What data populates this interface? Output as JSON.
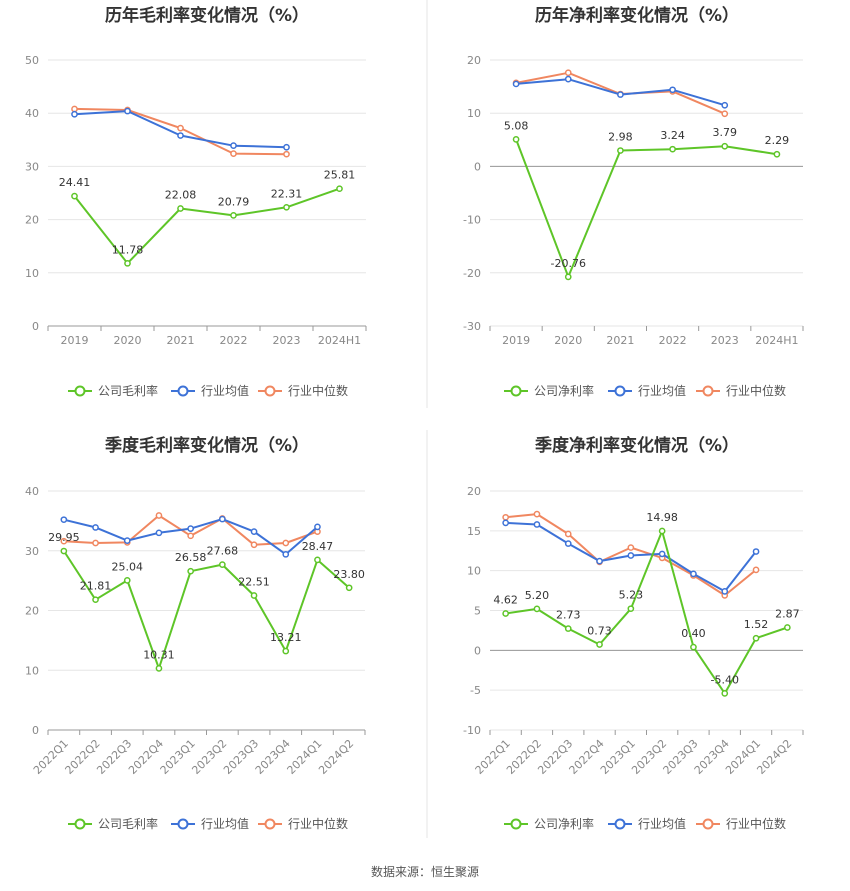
{
  "source_text": "数据来源：恒生聚源",
  "chart_data": [
    {
      "type": "line",
      "title": "历年毛利率变化情况（%）",
      "categories": [
        "2019",
        "2020",
        "2021",
        "2022",
        "2023",
        "2024H1"
      ],
      "ylim": [
        0,
        50
      ],
      "yticks": [
        0,
        10,
        20,
        30,
        40,
        50
      ],
      "grid": true,
      "legend_position": "bottom",
      "series": [
        {
          "name": "公司毛利率",
          "color": "#5ec528",
          "labels": true,
          "values": [
            24.41,
            11.78,
            22.08,
            20.79,
            22.31,
            25.81
          ]
        },
        {
          "name": "行业均值",
          "color": "#3d72d7",
          "labels": false,
          "values": [
            39.8,
            40.4,
            35.8,
            33.9,
            33.6,
            null
          ]
        },
        {
          "name": "行业中位数",
          "color": "#f08760",
          "labels": false,
          "values": [
            40.8,
            40.6,
            37.2,
            32.4,
            32.3,
            null
          ]
        }
      ]
    },
    {
      "type": "line",
      "title": "历年净利率变化情况（%）",
      "categories": [
        "2019",
        "2020",
        "2021",
        "2022",
        "2023",
        "2024H1"
      ],
      "ylim": [
        -30,
        20
      ],
      "yticks": [
        -30,
        -20,
        -10,
        0,
        10,
        20
      ],
      "grid": true,
      "legend_position": "bottom",
      "series": [
        {
          "name": "公司净利率",
          "color": "#5ec528",
          "labels": true,
          "values": [
            5.08,
            -20.76,
            2.98,
            3.24,
            3.79,
            2.29
          ]
        },
        {
          "name": "行业均值",
          "color": "#3d72d7",
          "labels": false,
          "values": [
            15.5,
            16.4,
            13.5,
            14.4,
            11.5,
            null
          ]
        },
        {
          "name": "行业中位数",
          "color": "#f08760",
          "labels": false,
          "values": [
            15.7,
            17.6,
            13.6,
            14.1,
            9.9,
            null
          ]
        }
      ]
    },
    {
      "type": "line",
      "title": "季度毛利率变化情况（%）",
      "categories": [
        "2022Q1",
        "2022Q2",
        "2022Q3",
        "2022Q4",
        "2023Q1",
        "2023Q2",
        "2023Q3",
        "2023Q4",
        "2024Q1",
        "2024Q2"
      ],
      "ylim": [
        0,
        40
      ],
      "yticks": [
        0,
        10,
        20,
        30,
        40
      ],
      "grid": true,
      "legend_position": "bottom",
      "series": [
        {
          "name": "公司毛利率",
          "color": "#5ec528",
          "labels": true,
          "values": [
            29.95,
            21.81,
            25.04,
            10.31,
            26.58,
            27.68,
            22.51,
            13.21,
            28.47,
            23.8
          ]
        },
        {
          "name": "行业均值",
          "color": "#3d72d7",
          "labels": false,
          "values": [
            35.2,
            33.9,
            31.7,
            33.0,
            33.7,
            35.3,
            33.2,
            29.4,
            34.0,
            null
          ]
        },
        {
          "name": "行业中位数",
          "color": "#f08760",
          "labels": false,
          "values": [
            31.6,
            31.3,
            31.4,
            35.9,
            32.5,
            35.4,
            31.0,
            31.3,
            33.2,
            null
          ]
        }
      ]
    },
    {
      "type": "line",
      "title": "季度净利率变化情况（%）",
      "categories": [
        "2022Q1",
        "2022Q2",
        "2022Q3",
        "2022Q4",
        "2023Q1",
        "2023Q2",
        "2023Q3",
        "2023Q4",
        "2024Q1",
        "2024Q2"
      ],
      "ylim": [
        -10,
        20
      ],
      "yticks": [
        -10,
        -5,
        0,
        5,
        10,
        15,
        20
      ],
      "grid": true,
      "legend_position": "bottom",
      "series": [
        {
          "name": "公司净利率",
          "color": "#5ec528",
          "labels": true,
          "values": [
            4.62,
            5.2,
            2.73,
            0.73,
            5.23,
            14.98,
            0.4,
            -5.4,
            1.52,
            2.87
          ]
        },
        {
          "name": "行业均值",
          "color": "#3d72d7",
          "labels": false,
          "values": [
            16.0,
            15.8,
            13.4,
            11.2,
            11.9,
            12.1,
            9.6,
            7.4,
            12.4,
            null
          ]
        },
        {
          "name": "行业中位数",
          "color": "#f08760",
          "labels": false,
          "values": [
            16.7,
            17.1,
            14.6,
            11.1,
            12.9,
            11.6,
            9.4,
            6.9,
            10.1,
            null
          ]
        }
      ]
    }
  ]
}
